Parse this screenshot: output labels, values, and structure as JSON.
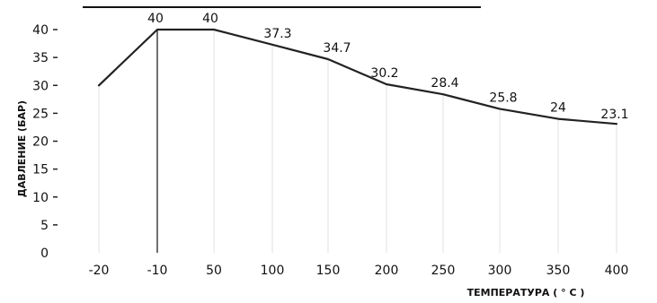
{
  "chart_data": {
    "type": "line",
    "xlabel": "ТЕМПЕРАТУРА  ( ° C )",
    "ylabel": "ДАВЛЕНИЕ (БАР)",
    "categories": [
      "-20",
      "-10",
      "50",
      "100",
      "150",
      "200",
      "250",
      "300",
      "350",
      "400"
    ],
    "series": [
      {
        "values": [
          30,
          40,
          40,
          37.3,
          34.7,
          30.2,
          28.4,
          25.8,
          24,
          23.1
        ]
      }
    ],
    "data_labels": [
      "",
      "40",
      "40",
      "37.3",
      "34.7",
      "30.2",
      "28.4",
      "25.8",
      "24",
      "23.1"
    ],
    "y_ticks": [
      0,
      5,
      10,
      15,
      20,
      25,
      30,
      35,
      40
    ],
    "ylim": [
      0,
      40
    ],
    "grid": false,
    "colors": {
      "line": "#222222",
      "text": "#111111"
    }
  }
}
